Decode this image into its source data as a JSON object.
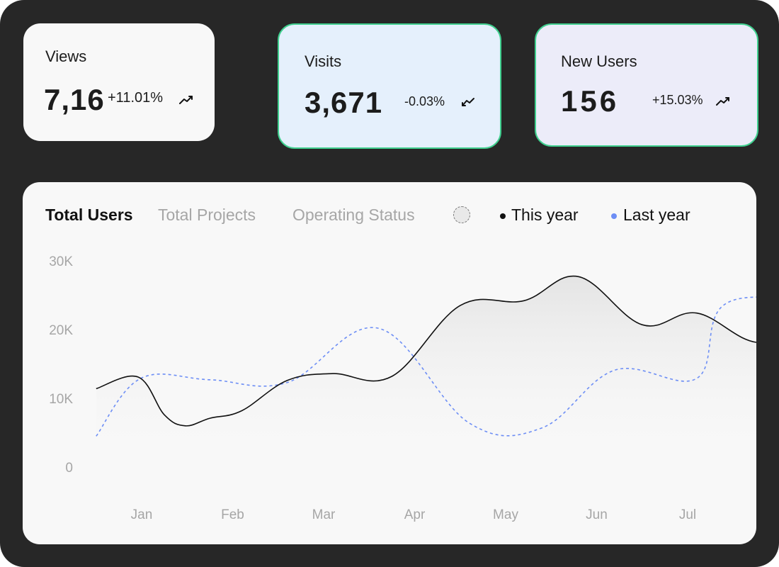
{
  "stats": [
    {
      "label": "Views",
      "value": "7,16",
      "change": "+11.01%",
      "trend": "up"
    },
    {
      "label": "Visits",
      "value": "3,671",
      "change": "-0.03%",
      "trend": "down"
    },
    {
      "label": "New Users",
      "value": "156",
      "change": "+15.03%",
      "trend": "up"
    }
  ],
  "tabs": [
    {
      "label": "Total Users",
      "active": true
    },
    {
      "label": "Total Projects",
      "active": false
    },
    {
      "label": "Operating Status",
      "active": false
    }
  ],
  "legend": [
    {
      "label": "This year",
      "color": "#111111"
    },
    {
      "label": "Last year",
      "color": "#6d8ef5"
    }
  ],
  "colors": {
    "accent_border": "#3fcf8e",
    "this_year": "#111111",
    "last_year": "#6d8ef5"
  },
  "chart_data": {
    "type": "line",
    "x_labels": [
      "Jan",
      "Feb",
      "Mar",
      "Apr",
      "May",
      "Jun",
      "Jul"
    ],
    "y_ticks": [
      "0",
      "10K",
      "20K",
      "30K"
    ],
    "ylim": [
      0,
      30000
    ],
    "grid": false,
    "legend_position": "top-right",
    "series": [
      {
        "name": "This year",
        "style": "solid",
        "points": [
          [
            0.5,
            11400
          ],
          [
            0.96,
            13100
          ],
          [
            1.25,
            7600
          ],
          [
            1.48,
            6000
          ],
          [
            1.75,
            7100
          ],
          [
            2.1,
            8200
          ],
          [
            2.6,
            12600
          ],
          [
            3.1,
            13600
          ],
          [
            3.75,
            13200
          ],
          [
            4.5,
            23500
          ],
          [
            5.2,
            24200
          ],
          [
            5.8,
            27700
          ],
          [
            6.5,
            20700
          ],
          [
            7.1,
            22400
          ],
          [
            7.8,
            18100
          ],
          [
            8.5,
            22400
          ],
          [
            9.3,
            23400
          ]
        ],
        "color": "#111111"
      },
      {
        "name": "Last year",
        "style": "dashed",
        "points": [
          [
            0.5,
            4500
          ],
          [
            0.99,
            12900
          ],
          [
            1.75,
            12700
          ],
          [
            2.6,
            12300
          ],
          [
            3.6,
            20200
          ],
          [
            4.6,
            6400
          ],
          [
            5.4,
            5700
          ],
          [
            6.2,
            14100
          ],
          [
            7.1,
            12900
          ],
          [
            7.4,
            23600
          ],
          [
            8.4,
            25100
          ],
          [
            9.3,
            30400
          ]
        ],
        "color": "#6d8ef5"
      }
    ]
  }
}
